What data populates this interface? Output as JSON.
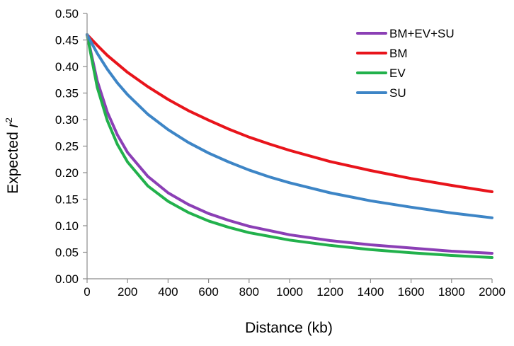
{
  "chart_data": {
    "type": "line",
    "title": "",
    "xlabel": "Distance (kb)",
    "ylabel_main": "Expected ",
    "ylabel_var": "r",
    "ylabel_sup": "2",
    "xlim": [
      0,
      2000
    ],
    "ylim": [
      0,
      0.5
    ],
    "xticks": [
      0,
      200,
      400,
      600,
      800,
      1000,
      1200,
      1400,
      1600,
      1800,
      2000
    ],
    "yticks": [
      "0.00",
      "0.05",
      "0.10",
      "0.15",
      "0.20",
      "0.25",
      "0.30",
      "0.35",
      "0.40",
      "0.45",
      "0.50"
    ],
    "grid": false,
    "legend_position": "top-right",
    "x": [
      0,
      50,
      100,
      150,
      200,
      300,
      400,
      500,
      600,
      700,
      800,
      900,
      1000,
      1200,
      1400,
      1600,
      1800,
      2000
    ],
    "series": [
      {
        "name": "BM+EV+SU",
        "color": "#8b3fb5",
        "values": [
          0.46,
          0.373,
          0.314,
          0.271,
          0.238,
          0.193,
          0.162,
          0.14,
          0.123,
          0.11,
          0.099,
          0.091,
          0.083,
          0.072,
          0.064,
          0.058,
          0.052,
          0.048
        ]
      },
      {
        "name": "BM",
        "color": "#e8141b",
        "values": [
          0.46,
          0.44,
          0.421,
          0.405,
          0.389,
          0.362,
          0.338,
          0.317,
          0.299,
          0.282,
          0.267,
          0.254,
          0.242,
          0.221,
          0.204,
          0.189,
          0.176,
          0.164
        ]
      },
      {
        "name": "EV",
        "color": "#22b14c",
        "values": [
          0.46,
          0.361,
          0.298,
          0.253,
          0.22,
          0.175,
          0.146,
          0.125,
          0.109,
          0.097,
          0.087,
          0.08,
          0.073,
          0.063,
          0.055,
          0.049,
          0.044,
          0.04
        ]
      },
      {
        "name": "SU",
        "color": "#3d85c6",
        "values": [
          0.46,
          0.425,
          0.395,
          0.369,
          0.347,
          0.31,
          0.281,
          0.257,
          0.237,
          0.22,
          0.205,
          0.192,
          0.181,
          0.162,
          0.147,
          0.135,
          0.124,
          0.115
        ]
      }
    ]
  }
}
